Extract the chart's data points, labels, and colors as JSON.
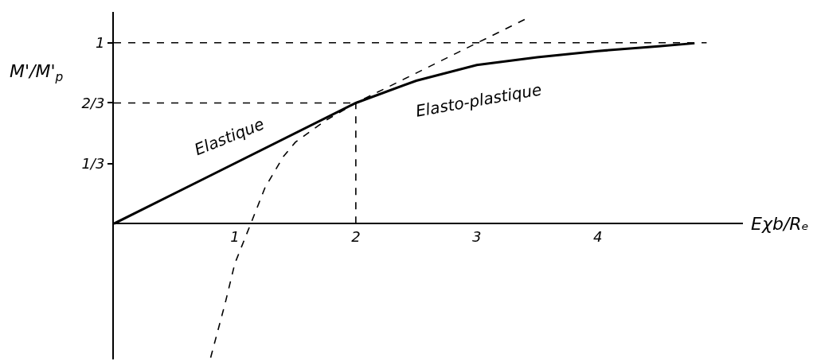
{
  "chart_data": {
    "type": "line",
    "xlabel": "Eχb/Rₑ",
    "ylabel": "M'/M'$_{p}$",
    "series": [
      {
        "color": "#000000",
        "line_style": "solid",
        "x": [
          0,
          2,
          2.5,
          3,
          3.5,
          4,
          4.5,
          4.8
        ],
        "values": [
          0,
          0.667,
          0.79,
          0.877,
          0.92,
          0.954,
          0.98,
          0.997
        ]
      },
      {
        "color": "#000000",
        "line_style": "dashed",
        "x": [
          0.8,
          0.92,
          1.0,
          1.12,
          1.25,
          1.4,
          1.5,
          1.75,
          2,
          3.4
        ],
        "values": [
          -0.74,
          -0.44,
          -0.22,
          -0.02,
          0.2,
          0.37,
          0.45,
          0.57,
          0.667,
          1.13
        ]
      },
      {
        "color": "#000000",
        "line_style": "dashed",
        "x": [
          0,
          4.9
        ],
        "values": [
          1,
          1
        ]
      },
      {
        "color": "#000000",
        "line_style": "dashed",
        "x": [
          0,
          2
        ],
        "values": [
          0.667,
          0.667
        ]
      },
      {
        "color": "#000000",
        "line_style": "dashed",
        "x": [
          2,
          2
        ],
        "values": [
          0,
          0.667
        ]
      }
    ],
    "annotations": [
      "Elastique",
      "Elasto-plastique"
    ],
    "xlim": [
      0,
      5.2
    ],
    "ylim": [
      -0.75,
      1.17
    ],
    "xticks": [
      1,
      2,
      3,
      4
    ],
    "yticks": [
      {
        "value": 0.333,
        "label": "1/3"
      },
      {
        "value": 0.667,
        "label": "2/3"
      },
      1
    ],
    "marker": "none"
  }
}
